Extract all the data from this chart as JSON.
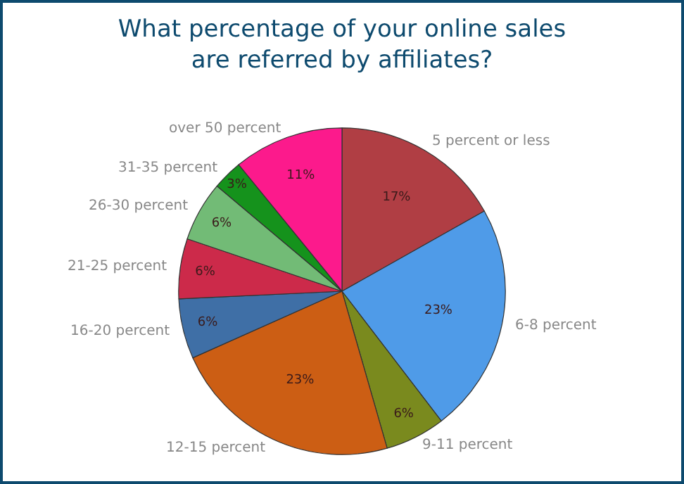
{
  "chart_data": {
    "type": "pie",
    "title": "What percentage of your online sales\nare referred by affiliates?",
    "categories": [
      "5 percent or less",
      "6-8 percent",
      "9-11 percent",
      "12-15 percent",
      "16-20 percent",
      "21-25 percent",
      "26-30 percent",
      "31-35 percent",
      "over 50 percent"
    ],
    "values": [
      17,
      23,
      6,
      23,
      6,
      6,
      6,
      3,
      11
    ],
    "value_labels": [
      "17%",
      "23%",
      "6%",
      "23%",
      "6%",
      "6%",
      "6%",
      "3%",
      "11%"
    ],
    "colors": [
      "#b03e44",
      "#4f9be8",
      "#7a8a1e",
      "#cc5e14",
      "#3f6fa6",
      "#cc2a4a",
      "#72bb76",
      "#15921c",
      "#fc1a8c"
    ],
    "legend": false
  }
}
